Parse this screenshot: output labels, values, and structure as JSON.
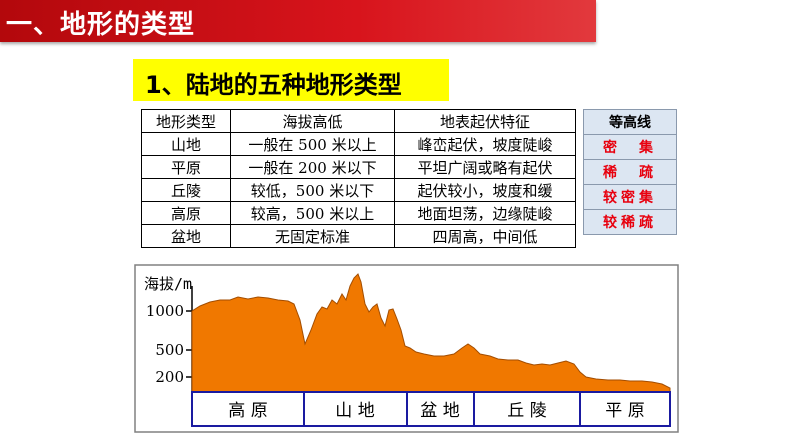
{
  "header": {
    "title": "一、地形的类型"
  },
  "section": {
    "title": "1、陆地的五种地形类型"
  },
  "table": {
    "headers": [
      "地形类型",
      "海拔高低",
      "地表起伏特征"
    ],
    "rows": [
      [
        "山地",
        "一般在 500 米以上",
        "峰峦起伏，坡度陡峻"
      ],
      [
        "平原",
        "一般在 200 米以下",
        "平坦广阔或略有起伏"
      ],
      [
        "丘陵",
        "较低，500 米以下",
        "起伏较小，坡度和缓"
      ],
      [
        "高原",
        "较高，500 米以上",
        "地面坦荡，边缘陡峻"
      ],
      [
        "盆地",
        "无固定标准",
        "四周高，中间低"
      ]
    ]
  },
  "contour_table": {
    "header": "等高线",
    "rows": [
      "密　集",
      "稀　疏",
      "较密集",
      "较稀疏"
    ]
  },
  "profile": {
    "axis_label": "海拔/m",
    "ticks": [
      "1000",
      "500",
      "200"
    ],
    "regions": [
      "高 原",
      "山 地",
      "盆 地",
      "丘 陵",
      "平 原"
    ],
    "fill_color": "#f07800",
    "box_color": "#1a1aa0"
  }
}
